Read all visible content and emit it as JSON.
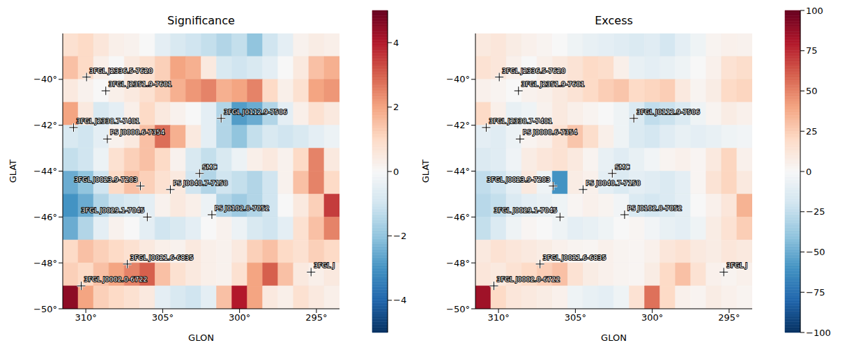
{
  "chart_data": [
    {
      "type": "heatmap",
      "title": "Significance",
      "x_label": "GLON",
      "y_label": "GLAT",
      "xlim": [
        311.5,
        293.5
      ],
      "ylim": [
        -50,
        -38
      ],
      "xticks": [
        {
          "value": 310,
          "label": "310°"
        },
        {
          "value": 305,
          "label": "305°"
        },
        {
          "value": 300,
          "label": "300°"
        },
        {
          "value": 295,
          "label": "295°"
        }
      ],
      "yticks": [
        {
          "value": -40,
          "label": "−40°"
        },
        {
          "value": -42,
          "label": "−42°"
        },
        {
          "value": -44,
          "label": "−44°"
        },
        {
          "value": -46,
          "label": "−46°"
        },
        {
          "value": -48,
          "label": "−48°"
        },
        {
          "value": -50,
          "label": "−50°"
        }
      ],
      "lon": [
        311,
        310,
        309,
        308,
        307,
        306,
        305,
        304,
        303,
        302,
        301,
        300,
        299,
        298,
        297,
        296,
        295,
        294
      ],
      "lat": [
        -38.5,
        -39.5,
        -40.5,
        -41.5,
        -42.5,
        -43.5,
        -44.5,
        -45.5,
        -46.5,
        -47.5,
        -48.5,
        -49.5
      ],
      "cells": [
        [
          0.8,
          1.0,
          0.6,
          0.3,
          0.2,
          0.0,
          -0.5,
          -0.8,
          -1.0,
          -1.2,
          -1.5,
          -1.2,
          -2.0,
          -1.0,
          -0.5,
          0.2,
          0.4,
          0.3
        ],
        [
          1.5,
          1.0,
          0.3,
          0.0,
          0.5,
          0.8,
          1.2,
          2.0,
          1.8,
          0.5,
          -0.8,
          -1.0,
          -0.8,
          -0.5,
          0.0,
          0.5,
          1.5,
          1.8
        ],
        [
          0.5,
          0.2,
          0.0,
          0.3,
          0.5,
          0.8,
          1.2,
          1.8,
          2.2,
          2.5,
          1.8,
          2.0,
          2.5,
          1.0,
          0.3,
          0.8,
          2.0,
          2.2
        ],
        [
          2.0,
          0.5,
          -0.8,
          -0.5,
          0.3,
          1.0,
          0.5,
          0.2,
          0.0,
          -0.5,
          -1.5,
          -2.8,
          -2.5,
          -1.5,
          -0.5,
          0.3,
          0.8,
          0.5
        ],
        [
          -0.8,
          -1.0,
          -0.5,
          0.2,
          0.5,
          1.5,
          2.8,
          1.8,
          0.5,
          -0.5,
          -1.5,
          -2.0,
          -1.2,
          -0.8,
          -1.0,
          -0.8,
          -0.5,
          -0.3
        ],
        [
          -1.2,
          -1.0,
          -0.3,
          0.8,
          1.2,
          1.5,
          1.0,
          0.2,
          -0.8,
          -1.2,
          -0.8,
          -0.3,
          0.3,
          0.5,
          0.2,
          1.0,
          2.5,
          0.5
        ],
        [
          -2.5,
          -2.0,
          -1.0,
          1.0,
          1.5,
          1.2,
          0.8,
          0.5,
          -1.0,
          -1.5,
          -1.0,
          -1.2,
          -1.5,
          -1.0,
          0.2,
          1.5,
          2.5,
          1.0
        ],
        [
          -3.0,
          -2.5,
          -1.5,
          -1.0,
          -0.8,
          -0.5,
          0.2,
          0.5,
          0.3,
          -0.3,
          -1.5,
          -1.8,
          -1.5,
          -1.0,
          0.0,
          0.5,
          1.2,
          3.5
        ],
        [
          -2.5,
          -1.5,
          -0.5,
          0.2,
          0.0,
          -0.5,
          -1.0,
          -0.8,
          -0.5,
          0.0,
          0.2,
          -0.3,
          -0.8,
          -1.0,
          -0.5,
          0.8,
          1.5,
          2.5
        ],
        [
          1.0,
          1.5,
          1.2,
          1.0,
          0.8,
          0.5,
          0.3,
          0.2,
          0.5,
          0.3,
          0.2,
          0.5,
          1.2,
          1.5,
          1.0,
          0.8,
          1.2,
          1.0
        ],
        [
          1.2,
          1.0,
          1.5,
          2.0,
          2.5,
          3.0,
          1.5,
          0.8,
          0.5,
          0.3,
          0.2,
          0.8,
          2.0,
          3.0,
          1.5,
          0.5,
          0.3,
          0.5
        ],
        [
          4.5,
          2.0,
          1.2,
          1.0,
          0.8,
          0.5,
          -0.5,
          -0.8,
          -1.0,
          -0.5,
          1.5,
          4.0,
          2.0,
          0.5,
          0.3,
          0.8,
          0.5,
          0.3
        ]
      ],
      "colorbar": {
        "range": [
          -5,
          5
        ],
        "ticks": [
          {
            "value": -4,
            "label": "−4"
          },
          {
            "value": -2,
            "label": "−2"
          },
          0,
          2,
          4
        ]
      },
      "sources": [
        {
          "name": "3FGL J2336.5-7620",
          "lon": 309.95,
          "lat": -39.9
        },
        {
          "name": "3FGL J2351.9-7601",
          "lon": 308.7,
          "lat": -40.5
        },
        {
          "name": "3FGL J2338.7-7401",
          "lon": 310.8,
          "lat": -42.1
        },
        {
          "name": "PS J0000.6-7354",
          "lon": 308.6,
          "lat": -42.6
        },
        {
          "name": "3FGL J0112.9-7506",
          "lon": 301.2,
          "lat": -41.7
        },
        {
          "name": "SMC",
          "lon": 302.6,
          "lat": -44.1
        },
        {
          "name": "3FGL J0023.9-7203",
          "lon": 306.45,
          "lat": -44.65
        },
        {
          "name": "PS J0040.7-7158",
          "lon": 304.5,
          "lat": -44.8
        },
        {
          "name": "3FGL J0029.1-7045",
          "lon": 306.0,
          "lat": -46.0
        },
        {
          "name": "PS J0102.8-7052",
          "lon": 301.8,
          "lat": -45.9
        },
        {
          "name": "3FGL J0021.6-6835",
          "lon": 307.3,
          "lat": -48.05
        },
        {
          "name": "3FGL J0002.0-6722",
          "lon": 310.3,
          "lat": -49.0
        },
        {
          "name": "3FGL J",
          "lon": 295.35,
          "lat": -48.4
        }
      ]
    },
    {
      "type": "heatmap",
      "title": "Excess",
      "x_label": "GLON",
      "y_label": "GLAT",
      "xlim": [
        311.5,
        293.5
      ],
      "ylim": [
        -50,
        -38
      ],
      "xticks": [
        {
          "value": 310,
          "label": "310°"
        },
        {
          "value": 305,
          "label": "305°"
        },
        {
          "value": 300,
          "label": "300°"
        },
        {
          "value": 295,
          "label": "295°"
        }
      ],
      "yticks": [
        {
          "value": -40,
          "label": "−40°"
        },
        {
          "value": -42,
          "label": "−42°"
        },
        {
          "value": -44,
          "label": "−44°"
        },
        {
          "value": -46,
          "label": "−46°"
        },
        {
          "value": -48,
          "label": "−48°"
        },
        {
          "value": -50,
          "label": "−50°"
        }
      ],
      "lon": [
        311,
        310,
        309,
        308,
        307,
        306,
        305,
        304,
        303,
        302,
        301,
        300,
        299,
        298,
        297,
        296,
        295,
        294
      ],
      "lat": [
        -38.5,
        -39.5,
        -40.5,
        -41.5,
        -42.5,
        -43.5,
        -44.5,
        -45.5,
        -46.5,
        -47.5,
        -48.5,
        -49.5
      ],
      "cells": [
        [
          10,
          12,
          8,
          5,
          3,
          0,
          -5,
          -8,
          -10,
          -12,
          -15,
          -12,
          -18,
          -10,
          -5,
          3,
          5,
          4
        ],
        [
          15,
          12,
          5,
          0,
          6,
          10,
          14,
          20,
          18,
          6,
          -8,
          -10,
          -8,
          -5,
          0,
          5,
          15,
          18
        ],
        [
          5,
          3,
          0,
          4,
          6,
          10,
          14,
          20,
          25,
          28,
          20,
          22,
          25,
          10,
          3,
          8,
          20,
          22
        ],
        [
          20,
          6,
          -8,
          -5,
          4,
          10,
          6,
          3,
          0,
          -5,
          -15,
          -25,
          -22,
          -15,
          -5,
          3,
          8,
          5
        ],
        [
          -10,
          -12,
          -6,
          3,
          6,
          15,
          28,
          18,
          6,
          -5,
          -15,
          -18,
          -12,
          -8,
          -10,
          -8,
          -5,
          -3
        ],
        [
          -14,
          -12,
          -4,
          8,
          12,
          15,
          10,
          3,
          -8,
          -12,
          -8,
          -3,
          3,
          5,
          2,
          10,
          22,
          5
        ],
        [
          -25,
          -20,
          -10,
          10,
          -5,
          -60,
          8,
          5,
          -10,
          -15,
          -10,
          -12,
          -15,
          -10,
          2,
          14,
          22,
          10
        ],
        [
          -28,
          -24,
          -15,
          -10,
          -8,
          -5,
          2,
          5,
          3,
          -3,
          -15,
          -18,
          -15,
          -10,
          0,
          5,
          12,
          35
        ],
        [
          -24,
          -15,
          -5,
          2,
          0,
          -5,
          -10,
          -8,
          -5,
          0,
          2,
          -3,
          -8,
          -10,
          -5,
          8,
          15,
          25
        ],
        [
          10,
          15,
          12,
          10,
          8,
          5,
          3,
          2,
          5,
          3,
          2,
          5,
          12,
          15,
          10,
          8,
          12,
          10
        ],
        [
          12,
          10,
          15,
          20,
          25,
          30,
          15,
          8,
          5,
          3,
          2,
          8,
          20,
          30,
          15,
          5,
          3,
          5
        ],
        [
          85,
          20,
          12,
          10,
          8,
          5,
          -5,
          -8,
          -10,
          -5,
          15,
          55,
          20,
          5,
          3,
          8,
          5,
          3
        ]
      ],
      "colorbar": {
        "range": [
          -100,
          100
        ],
        "ticks": [
          {
            "value": -100,
            "label": "−100"
          },
          {
            "value": -75,
            "label": "−75"
          },
          {
            "value": -50,
            "label": "−50"
          },
          {
            "value": -25,
            "label": "−25"
          },
          0,
          25,
          50,
          75,
          100
        ]
      },
      "sources": [
        {
          "name": "3FGL J2336.5-7620",
          "lon": 309.95,
          "lat": -39.9
        },
        {
          "name": "3FGL J2351.9-7601",
          "lon": 308.7,
          "lat": -40.5
        },
        {
          "name": "3FGL J2338.7-7401",
          "lon": 310.8,
          "lat": -42.1
        },
        {
          "name": "PS J0000.6-7354",
          "lon": 308.6,
          "lat": -42.6
        },
        {
          "name": "3FGL J0112.9-7506",
          "lon": 301.2,
          "lat": -41.7
        },
        {
          "name": "SMC",
          "lon": 302.6,
          "lat": -44.1
        },
        {
          "name": "3FGL J0023.9-7203",
          "lon": 306.45,
          "lat": -44.65
        },
        {
          "name": "PS J0040.7-7158",
          "lon": 304.5,
          "lat": -44.8
        },
        {
          "name": "3FGL J0029.1-7045",
          "lon": 306.0,
          "lat": -46.0
        },
        {
          "name": "PS J0102.8-7052",
          "lon": 301.8,
          "lat": -45.9
        },
        {
          "name": "3FGL J0021.6-6835",
          "lon": 307.3,
          "lat": -48.05
        },
        {
          "name": "3FGL J0002.0-6722",
          "lon": 310.3,
          "lat": -49.0
        },
        {
          "name": "3FGL J",
          "lon": 295.35,
          "lat": -48.4
        }
      ]
    }
  ]
}
